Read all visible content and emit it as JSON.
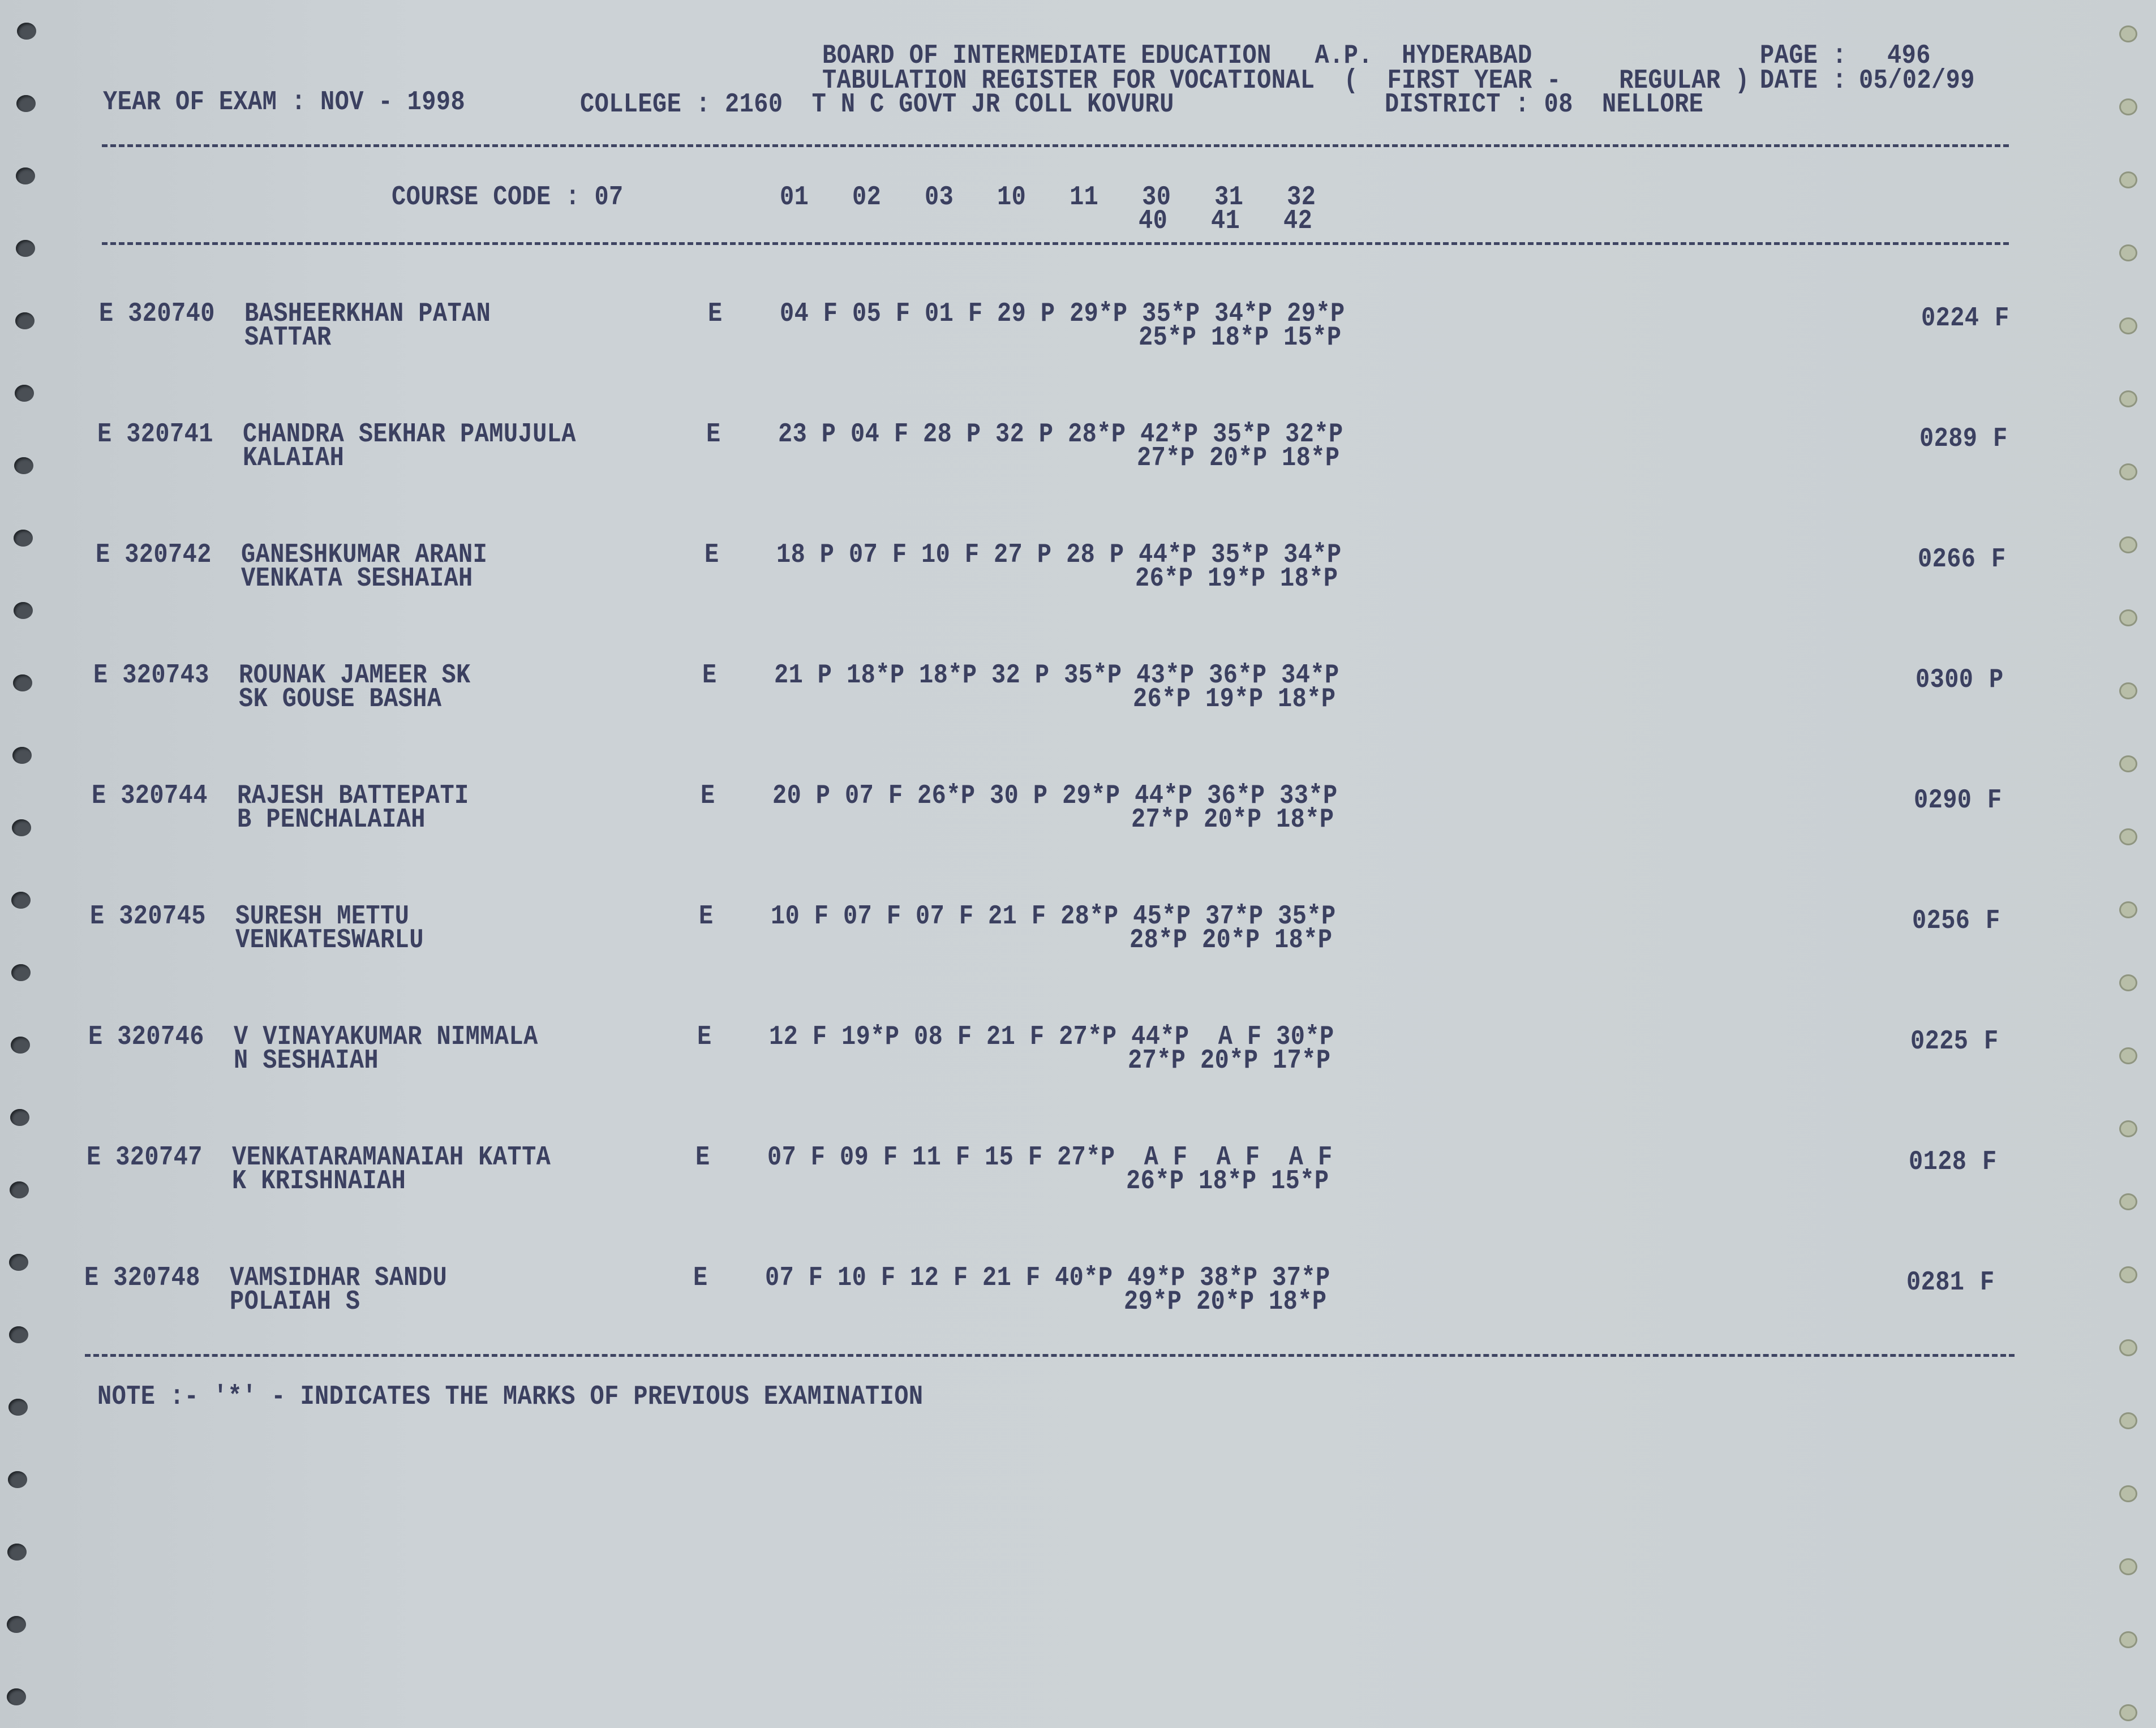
{
  "header": {
    "board": "BOARD OF INTERMEDIATE EDUCATION   A.P.  HYDERABAD",
    "page_label": "PAGE :",
    "page_number": "496",
    "register": "TABULATION REGISTER FOR VOCATIONAL  (  FIRST YEAR -    REGULAR )",
    "date_label": "DATE :",
    "date": "05/02/99",
    "year_of_exam": "YEAR OF EXAM : NOV - 1998",
    "college": "COLLEGE : 2160  T N C GOVT JR COLL KOVURU",
    "district": "DISTRICT : 08  NELLORE"
  },
  "course": {
    "code_label": "COURSE CODE : 07",
    "subjects_line1": "01   02   03   10   11   30   31   32",
    "subjects_line2": "40   41   42"
  },
  "rows": [
    {
      "roll": "E 320740",
      "name1": "BASHEERKHAN PATAN",
      "name2": "SATTAR",
      "medium": "E",
      "marks1": "04 F 05 F 01 F 29 P 29*P 35*P 34*P 29*P",
      "marks2": "25*P 18*P 15*P",
      "total": "0224",
      "result": "F"
    },
    {
      "roll": "E 320741",
      "name1": "CHANDRA SEKHAR PAMUJULA",
      "name2": "KALAIAH",
      "medium": "E",
      "marks1": "23 P 04 F 28 P 32 P 28*P 42*P 35*P 32*P",
      "marks2": "27*P 20*P 18*P",
      "total": "0289",
      "result": "F"
    },
    {
      "roll": "E 320742",
      "name1": "GANESHKUMAR ARANI",
      "name2": "VENKATA SESHAIAH",
      "medium": "E",
      "marks1": "18 P 07 F 10 F 27 P 28 P 44*P 35*P 34*P",
      "marks2": "26*P 19*P 18*P",
      "total": "0266",
      "result": "F"
    },
    {
      "roll": "E 320743",
      "name1": "ROUNAK JAMEER SK",
      "name2": "SK GOUSE BASHA",
      "medium": "E",
      "marks1": "21 P 18*P 18*P 32 P 35*P 43*P 36*P 34*P",
      "marks2": "26*P 19*P 18*P",
      "total": "0300",
      "result": "P"
    },
    {
      "roll": "E 320744",
      "name1": "RAJESH BATTEPATI",
      "name2": "B PENCHALAIAH",
      "medium": "E",
      "marks1": "20 P 07 F 26*P 30 P 29*P 44*P 36*P 33*P",
      "marks2": "27*P 20*P 18*P",
      "total": "0290",
      "result": "F"
    },
    {
      "roll": "E 320745",
      "name1": "SURESH METTU",
      "name2": "VENKATESWARLU",
      "medium": "E",
      "marks1": "10 F 07 F 07 F 21 F 28*P 45*P 37*P 35*P",
      "marks2": "28*P 20*P 18*P",
      "total": "0256",
      "result": "F"
    },
    {
      "roll": "E 320746",
      "name1": "V VINAYAKUMAR NIMMALA",
      "name2": "N SESHAIAH",
      "medium": "E",
      "marks1": "12 F 19*P 08 F 21 F 27*P 44*P  A F 30*P",
      "marks2": "27*P 20*P 17*P",
      "total": "0225",
      "result": "F"
    },
    {
      "roll": "E 320747",
      "name1": "VENKATARAMANAIAH KATTA",
      "name2": "K KRISHNAIAH",
      "medium": "E",
      "marks1": "07 F 09 F 11 F 15 F 27*P  A F  A F  A F",
      "marks2": "26*P 18*P 15*P",
      "total": "0128",
      "result": "F"
    },
    {
      "roll": "E 320748",
      "name1": "VAMSIDHAR SANDU",
      "name2": "POLAIAH S",
      "medium": "E",
      "marks1": "07 F 10 F 12 F 21 F 40*P 49*P 38*P 37*P",
      "marks2": "29*P 20*P 18*P",
      "total": "0281",
      "result": "F"
    }
  ],
  "note": "NOTE :- '*' - INDICATES THE MARKS OF PREVIOUS EXAMINATION"
}
